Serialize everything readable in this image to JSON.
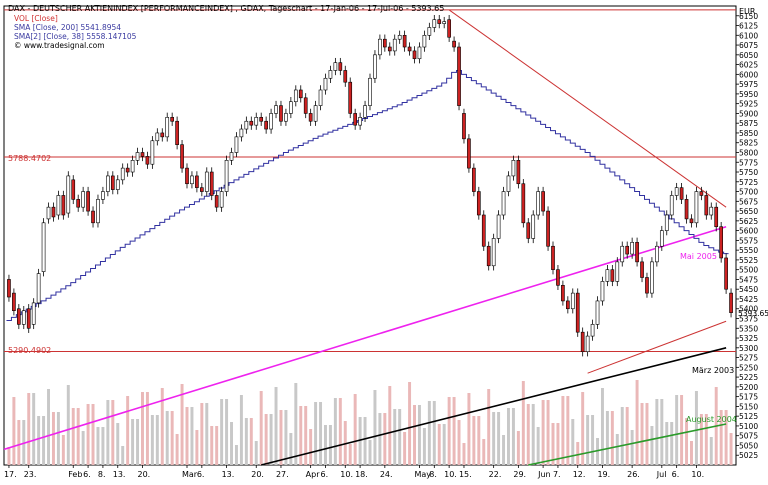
{
  "header": {
    "symbol_line": "DAX - DEUTSCHER AKTIENINDEX [PERFORMANCEINDEX] , GDAX, Tageschart - 17-Jan-06 - 17-Jul-06 - 5393.65",
    "indicators": [
      {
        "text": "VOL [Close]",
        "color": "#d03030"
      },
      {
        "text": "SMA [Close, 200] 5541.8954",
        "color": "#3a3aa0"
      },
      {
        "text": "SMA[2] [Close, 38] 5558.147105",
        "color": "#3a3aa0"
      },
      {
        "text": "© www.tradesignal.com",
        "color": "#000000"
      }
    ]
  },
  "currency": "EUR",
  "last_price": "5393.65",
  "level_labels": {
    "upper": "5788.4702",
    "lower": "5290.4902"
  },
  "annotations": {
    "mai": "Mai 2005",
    "maerz": "März 2003",
    "august": "August 2004"
  },
  "colors": {
    "up": "#ffffff",
    "down": "#cc2222",
    "sma": "#3030a0",
    "magenta": "#ee22ee",
    "resistance": "#cc3333",
    "black_line": "#000000",
    "green_line": "#2a9a2a",
    "vol_up": "#c8c8c8",
    "vol_down": "#eab8b8"
  },
  "chart_data": {
    "type": "candlestick",
    "title": "DAX - DEUTSCHER AKTIENINDEX [PERFORMANCEINDEX] , GDAX, Tageschart - 17-Jan-06 - 17-Jul-06 - 5393.65",
    "ylabel": "EUR",
    "ylim": [
      5000,
      6175
    ],
    "y_ticks": [
      5025,
      5050,
      5075,
      5100,
      5125,
      5150,
      5175,
      5200,
      5225,
      5250,
      5275,
      5300,
      5325,
      5350,
      5375,
      5400,
      5425,
      5450,
      5475,
      5500,
      5525,
      5550,
      5575,
      5600,
      5625,
      5650,
      5675,
      5700,
      5725,
      5750,
      5775,
      5800,
      5825,
      5850,
      5875,
      5900,
      5925,
      5950,
      5975,
      6000,
      6025,
      6050,
      6075,
      6100,
      6125,
      6150
    ],
    "x_ticks": [
      {
        "i": 0,
        "label": "17."
      },
      {
        "i": 4,
        "label": "23."
      },
      {
        "i": 13,
        "label": "Feb"
      },
      {
        "i": 16,
        "label": "6."
      },
      {
        "i": 19,
        "label": "8."
      },
      {
        "i": 22,
        "label": "13."
      },
      {
        "i": 27,
        "label": "20."
      },
      {
        "i": 36,
        "label": "Mar"
      },
      {
        "i": 39,
        "label": "6."
      },
      {
        "i": 44,
        "label": "13."
      },
      {
        "i": 50,
        "label": "20."
      },
      {
        "i": 55,
        "label": "27."
      },
      {
        "i": 61,
        "label": "Apr"
      },
      {
        "i": 64,
        "label": "6."
      },
      {
        "i": 68,
        "label": "10."
      },
      {
        "i": 71,
        "label": "18."
      },
      {
        "i": 76,
        "label": "24."
      },
      {
        "i": 83,
        "label": "May"
      },
      {
        "i": 86,
        "label": "8."
      },
      {
        "i": 89,
        "label": "10."
      },
      {
        "i": 92,
        "label": "15."
      },
      {
        "i": 98,
        "label": "22."
      },
      {
        "i": 103,
        "label": "29."
      },
      {
        "i": 108,
        "label": "Jun"
      },
      {
        "i": 111,
        "label": "7."
      },
      {
        "i": 115,
        "label": "12."
      },
      {
        "i": 120,
        "label": "19."
      },
      {
        "i": 126,
        "label": "26."
      },
      {
        "i": 132,
        "label": "Jul"
      },
      {
        "i": 135,
        "label": "6."
      },
      {
        "i": 139,
        "label": "10."
      }
    ],
    "horizontal_levels": [
      6165,
      5788.4702,
      5290.4902
    ],
    "trendlines": [
      {
        "name": "Mai 2005",
        "color": "#ee22ee",
        "points": [
          [
            -1,
            5040
          ],
          [
            145,
            5610
          ]
        ]
      },
      {
        "name": "März 2003",
        "color": "#000000",
        "points": [
          [
            51,
            5000
          ],
          [
            145,
            5300
          ]
        ]
      },
      {
        "name": "August 2004",
        "color": "#2a9a2a",
        "points": [
          [
            105,
            5000
          ],
          [
            145,
            5105
          ]
        ]
      },
      {
        "name": "resistance",
        "color": "#cc3333",
        "points": [
          [
            89,
            6165
          ],
          [
            145,
            5660
          ]
        ]
      },
      {
        "name": "support",
        "color": "#cc3333",
        "points": [
          [
            117,
            5235
          ],
          [
            145,
            5368
          ]
        ]
      }
    ],
    "sma_200": [
      5370,
      5378,
      5385,
      5392,
      5399,
      5406,
      5413,
      5420,
      5427,
      5435,
      5443,
      5451,
      5459,
      5467,
      5476,
      5485,
      5494,
      5503,
      5512,
      5521,
      5530,
      5539,
      5548,
      5557,
      5565,
      5573,
      5581,
      5589,
      5597,
      5605,
      5613,
      5621,
      5629,
      5637,
      5645,
      5653,
      5660,
      5667,
      5674,
      5681,
      5688,
      5695,
      5702,
      5709,
      5716,
      5723,
      5730,
      5737,
      5744,
      5751,
      5758,
      5765,
      5772,
      5779,
      5786,
      5793,
      5800,
      5806,
      5812,
      5818,
      5824,
      5830,
      5836,
      5842,
      5847,
      5852,
      5857,
      5862,
      5867,
      5872,
      5877,
      5882,
      5887,
      5892,
      5897,
      5902,
      5907,
      5912,
      5917,
      5922,
      5928,
      5934,
      5940,
      5946,
      5952,
      5958,
      5964,
      5970,
      5978,
      5990,
      6005,
      6010,
      6000,
      5992,
      5984,
      5976,
      5968,
      5960,
      5952,
      5944,
      5936,
      5928,
      5920,
      5912,
      5904,
      5896,
      5888,
      5880,
      5872,
      5864,
      5856,
      5848,
      5840,
      5832,
      5824,
      5816,
      5808,
      5800,
      5790,
      5780,
      5770,
      5760,
      5750,
      5740,
      5730,
      5720,
      5710,
      5700,
      5690,
      5680,
      5670,
      5660,
      5650,
      5640,
      5630,
      5620,
      5610,
      5600,
      5590,
      5580,
      5570,
      5562,
      5556,
      5550,
      5545,
      5541
    ],
    "candles": [
      [
        5475,
        5430
      ],
      [
        5440,
        5395
      ],
      [
        5400,
        5360
      ],
      [
        5360,
        5395
      ],
      [
        5400,
        5350
      ],
      [
        5360,
        5415
      ],
      [
        5415,
        5490
      ],
      [
        5495,
        5620
      ],
      [
        5630,
        5660
      ],
      [
        5660,
        5635
      ],
      [
        5640,
        5690
      ],
      [
        5690,
        5640
      ],
      [
        5645,
        5740
      ],
      [
        5730,
        5680
      ],
      [
        5680,
        5660
      ],
      [
        5660,
        5700
      ],
      [
        5700,
        5650
      ],
      [
        5650,
        5620
      ],
      [
        5620,
        5680
      ],
      [
        5680,
        5700
      ],
      [
        5700,
        5740
      ],
      [
        5740,
        5705
      ],
      [
        5705,
        5730
      ],
      [
        5730,
        5760
      ],
      [
        5760,
        5750
      ],
      [
        5750,
        5780
      ],
      [
        5780,
        5800
      ],
      [
        5800,
        5790
      ],
      [
        5790,
        5770
      ],
      [
        5770,
        5830
      ],
      [
        5830,
        5850
      ],
      [
        5850,
        5840
      ],
      [
        5840,
        5890
      ],
      [
        5890,
        5880
      ],
      [
        5880,
        5820
      ],
      [
        5820,
        5760
      ],
      [
        5760,
        5720
      ],
      [
        5720,
        5740
      ],
      [
        5740,
        5710
      ],
      [
        5710,
        5700
      ],
      [
        5700,
        5750
      ],
      [
        5750,
        5690
      ],
      [
        5690,
        5660
      ],
      [
        5660,
        5700
      ],
      [
        5700,
        5780
      ],
      [
        5780,
        5800
      ],
      [
        5800,
        5840
      ],
      [
        5840,
        5860
      ],
      [
        5860,
        5880
      ],
      [
        5880,
        5870
      ],
      [
        5870,
        5890
      ],
      [
        5890,
        5880
      ],
      [
        5880,
        5860
      ],
      [
        5860,
        5900
      ],
      [
        5900,
        5920
      ],
      [
        5920,
        5880
      ],
      [
        5880,
        5900
      ],
      [
        5900,
        5930
      ],
      [
        5930,
        5960
      ],
      [
        5960,
        5940
      ],
      [
        5940,
        5900
      ],
      [
        5900,
        5880
      ],
      [
        5880,
        5920
      ],
      [
        5920,
        5960
      ],
      [
        5960,
        5990
      ],
      [
        5990,
        6010
      ],
      [
        6010,
        6030
      ],
      [
        6030,
        6010
      ],
      [
        6010,
        5980
      ],
      [
        5980,
        5900
      ],
      [
        5900,
        5870
      ],
      [
        5870,
        5890
      ],
      [
        5890,
        5920
      ],
      [
        5920,
        5990
      ],
      [
        5990,
        6050
      ],
      [
        6050,
        6090
      ],
      [
        6090,
        6070
      ],
      [
        6070,
        6060
      ],
      [
        6060,
        6090
      ],
      [
        6090,
        6100
      ],
      [
        6100,
        6070
      ],
      [
        6070,
        6060
      ],
      [
        6060,
        6040
      ],
      [
        6040,
        6070
      ],
      [
        6070,
        6100
      ],
      [
        6100,
        6120
      ],
      [
        6120,
        6140
      ],
      [
        6140,
        6130
      ],
      [
        6130,
        6135
      ],
      [
        6140,
        6095
      ],
      [
        6085,
        6070
      ],
      [
        6070,
        5920
      ],
      [
        5900,
        5835
      ],
      [
        5835,
        5760
      ],
      [
        5760,
        5700
      ],
      [
        5700,
        5640
      ],
      [
        5640,
        5560
      ],
      [
        5560,
        5510
      ],
      [
        5510,
        5580
      ],
      [
        5580,
        5640
      ],
      [
        5640,
        5700
      ],
      [
        5700,
        5740
      ],
      [
        5740,
        5780
      ],
      [
        5780,
        5720
      ],
      [
        5720,
        5620
      ],
      [
        5620,
        5580
      ],
      [
        5580,
        5640
      ],
      [
        5640,
        5700
      ],
      [
        5700,
        5650
      ],
      [
        5650,
        5560
      ],
      [
        5560,
        5500
      ],
      [
        5500,
        5460
      ],
      [
        5460,
        5420
      ],
      [
        5420,
        5400
      ],
      [
        5400,
        5440
      ],
      [
        5440,
        5340
      ],
      [
        5340,
        5290
      ],
      [
        5290,
        5330
      ],
      [
        5330,
        5360
      ],
      [
        5360,
        5420
      ],
      [
        5420,
        5470
      ],
      [
        5470,
        5500
      ],
      [
        5500,
        5470
      ],
      [
        5470,
        5520
      ],
      [
        5520,
        5560
      ],
      [
        5560,
        5540
      ],
      [
        5540,
        5570
      ],
      [
        5570,
        5520
      ],
      [
        5520,
        5480
      ],
      [
        5480,
        5440
      ],
      [
        5440,
        5520
      ],
      [
        5520,
        5560
      ],
      [
        5560,
        5600
      ],
      [
        5600,
        5640
      ],
      [
        5640,
        5690
      ],
      [
        5690,
        5710
      ],
      [
        5710,
        5680
      ],
      [
        5680,
        5630
      ],
      [
        5630,
        5620
      ],
      [
        5620,
        5700
      ],
      [
        5700,
        5690
      ],
      [
        5690,
        5640
      ],
      [
        5640,
        5660
      ],
      [
        5660,
        5610
      ],
      [
        5610,
        5530
      ],
      [
        5530,
        5450
      ],
      [
        5440,
        5390
      ]
    ],
    "volume_note": "volume bars shown in lower panel, relative heights"
  }
}
